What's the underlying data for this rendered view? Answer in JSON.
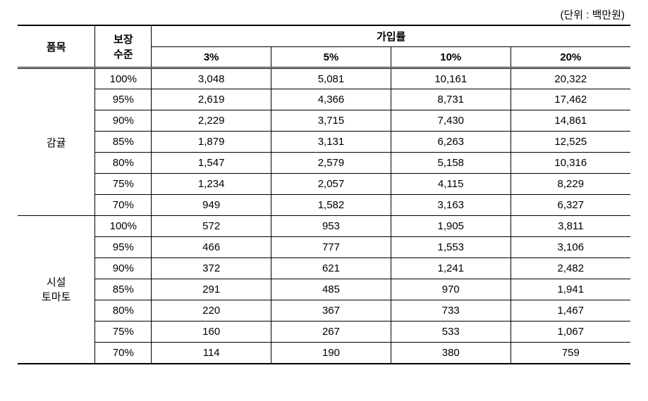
{
  "unit_label": "(단위 : 백만원)",
  "table": {
    "type": "table",
    "background_color": "#ffffff",
    "border_color": "#000000",
    "font_size": 15,
    "columns": {
      "item": "품목",
      "level": "보장\n수준",
      "rate_group": "가입률",
      "rates": [
        "3%",
        "5%",
        "10%",
        "20%"
      ]
    },
    "groups": [
      {
        "item": "감귤",
        "rows": [
          {
            "level": "100%",
            "values": [
              "3,048",
              "5,081",
              "10,161",
              "20,322"
            ]
          },
          {
            "level": "95%",
            "values": [
              "2,619",
              "4,366",
              "8,731",
              "17,462"
            ]
          },
          {
            "level": "90%",
            "values": [
              "2,229",
              "3,715",
              "7,430",
              "14,861"
            ]
          },
          {
            "level": "85%",
            "values": [
              "1,879",
              "3,131",
              "6,263",
              "12,525"
            ]
          },
          {
            "level": "80%",
            "values": [
              "1,547",
              "2,579",
              "5,158",
              "10,316"
            ]
          },
          {
            "level": "75%",
            "values": [
              "1,234",
              "2,057",
              "4,115",
              "8,229"
            ]
          },
          {
            "level": "70%",
            "values": [
              "949",
              "1,582",
              "3,163",
              "6,327"
            ]
          }
        ]
      },
      {
        "item": "시설\n토마토",
        "rows": [
          {
            "level": "100%",
            "values": [
              "572",
              "953",
              "1,905",
              "3,811"
            ]
          },
          {
            "level": "95%",
            "values": [
              "466",
              "777",
              "1,553",
              "3,106"
            ]
          },
          {
            "level": "90%",
            "values": [
              "372",
              "621",
              "1,241",
              "2,482"
            ]
          },
          {
            "level": "85%",
            "values": [
              "291",
              "485",
              "970",
              "1,941"
            ]
          },
          {
            "level": "80%",
            "values": [
              "220",
              "367",
              "733",
              "1,467"
            ]
          },
          {
            "level": "75%",
            "values": [
              "160",
              "267",
              "533",
              "1,067"
            ]
          },
          {
            "level": "70%",
            "values": [
              "114",
              "190",
              "380",
              "759"
            ]
          }
        ]
      }
    ]
  }
}
